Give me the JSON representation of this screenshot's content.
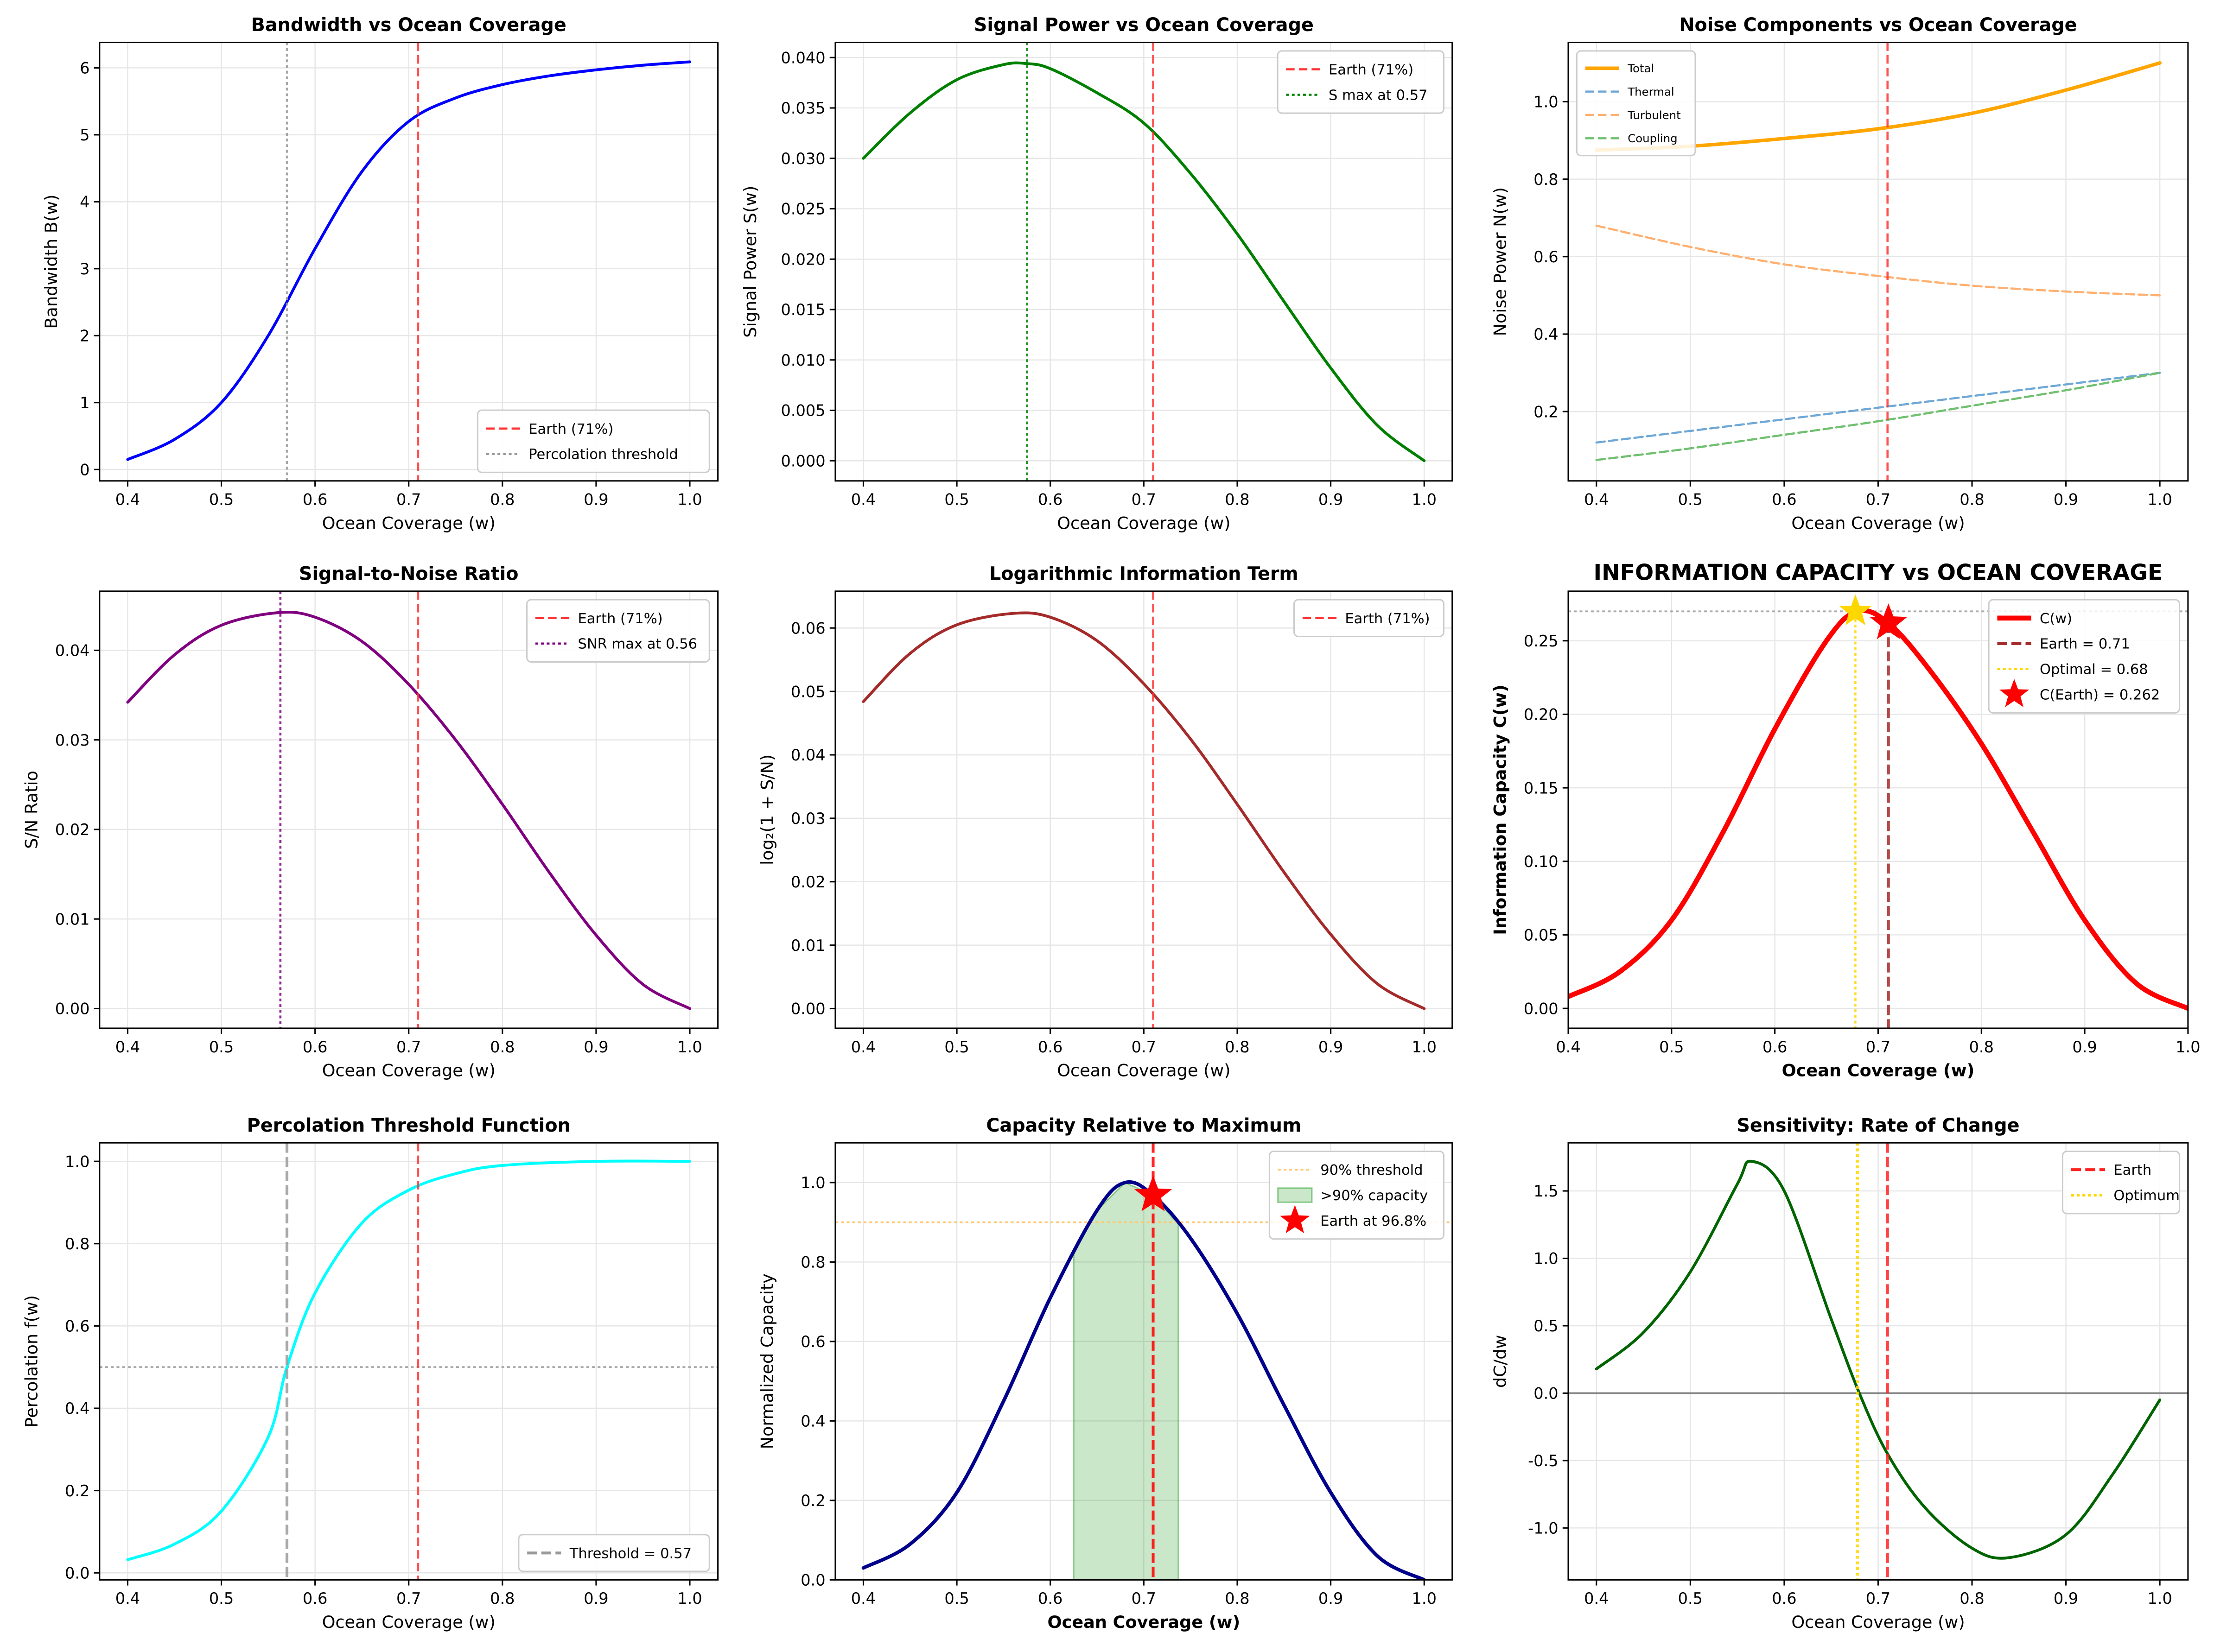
{
  "chart_data": [
    {
      "type": "line",
      "title": "Bandwidth vs Ocean Coverage",
      "xlabel": "Ocean Coverage (w)",
      "ylabel": "Bandwidth B(w)",
      "xlim": [
        0.37,
        1.03
      ],
      "ylim": [
        -0.17,
        6.38
      ],
      "grid": true,
      "xticks": [
        0.4,
        0.5,
        0.6,
        0.7,
        0.8,
        0.9,
        1.0
      ],
      "yticks": [
        0,
        1,
        2,
        3,
        4,
        5,
        6
      ],
      "legend": "lower-right",
      "series": [
        {
          "x": [
            0.4,
            0.45,
            0.5,
            0.55,
            0.6,
            0.65,
            0.7,
            0.75,
            0.8,
            0.85,
            0.9,
            0.95,
            1.0
          ],
          "y": [
            0.15,
            0.45,
            1.0,
            2.0,
            3.3,
            4.45,
            5.2,
            5.55,
            5.75,
            5.88,
            5.97,
            6.04,
            6.09
          ],
          "color": "#0000ff",
          "width": 2
        }
      ],
      "vlines": [
        {
          "x": 0.71,
          "name": "Earth (71%)",
          "color": "#ff3333",
          "dash": "6,3"
        },
        {
          "x": 0.57,
          "name": "Percolation threshold",
          "color": "#999999",
          "dash": "2,2"
        }
      ]
    },
    {
      "type": "line",
      "title": "Signal Power vs Ocean Coverage",
      "xlabel": "Ocean Coverage (w)",
      "ylabel": "Signal Power S(w)",
      "xlim": [
        0.37,
        1.03
      ],
      "ylim": [
        -0.002,
        0.0415
      ],
      "grid": true,
      "xticks": [
        0.4,
        0.5,
        0.6,
        0.7,
        0.8,
        0.9,
        1.0
      ],
      "yticks": [
        0,
        0.005,
        0.01,
        0.015,
        0.02,
        0.025,
        0.03,
        0.035,
        0.04
      ],
      "ytick_decimals": 3,
      "legend": "upper-right",
      "series": [
        {
          "x": [
            0.4,
            0.45,
            0.5,
            0.55,
            0.575,
            0.6,
            0.65,
            0.7,
            0.75,
            0.8,
            0.85,
            0.9,
            0.95,
            1.0
          ],
          "y": [
            0.03,
            0.0345,
            0.0378,
            0.0393,
            0.0394,
            0.0389,
            0.0365,
            0.0335,
            0.0285,
            0.0225,
            0.0158,
            0.0092,
            0.0035,
            0.0
          ],
          "color": "#008000",
          "width": 2
        }
      ],
      "vlines": [
        {
          "x": 0.71,
          "name": "Earth (71%)",
          "color": "#ff3333",
          "dash": "6,3"
        },
        {
          "x": 0.575,
          "name": "S max at 0.57",
          "color": "#008000",
          "dash": "2,2"
        }
      ]
    },
    {
      "type": "line",
      "title": "Noise Components vs Ocean Coverage",
      "xlabel": "Ocean Coverage (w)",
      "ylabel": "Noise Power N(w)",
      "xlim": [
        0.37,
        1.03
      ],
      "ylim": [
        0.021,
        1.153
      ],
      "grid": true,
      "xticks": [
        0.4,
        0.5,
        0.6,
        0.7,
        0.8,
        0.9,
        1.0
      ],
      "yticks": [
        0.2,
        0.4,
        0.6,
        0.8,
        1.0
      ],
      "ytick_decimals": 1,
      "legend": "upper-left",
      "series": [
        {
          "name": "Total",
          "x": [
            0.4,
            0.5,
            0.6,
            0.7,
            0.8,
            0.9,
            1.0
          ],
          "y": [
            0.875,
            0.885,
            0.905,
            0.93,
            0.97,
            1.03,
            1.1
          ],
          "color": "#ffa500",
          "width": 2.5
        },
        {
          "name": "Thermal",
          "x": [
            0.4,
            0.5,
            0.6,
            0.7,
            0.8,
            0.9,
            1.0
          ],
          "y": [
            0.12,
            0.15,
            0.18,
            0.21,
            0.24,
            0.27,
            0.3
          ],
          "color": "#6fa8d6",
          "width": 1.5,
          "dash": "6,3"
        },
        {
          "name": "Turbulent",
          "x": [
            0.4,
            0.5,
            0.6,
            0.7,
            0.8,
            0.9,
            1.0
          ],
          "y": [
            0.68,
            0.625,
            0.58,
            0.55,
            0.525,
            0.51,
            0.5
          ],
          "color": "#ffb070",
          "width": 1.5,
          "dash": "6,3"
        },
        {
          "name": "Coupling",
          "x": [
            0.4,
            0.5,
            0.6,
            0.7,
            0.8,
            0.9,
            1.0
          ],
          "y": [
            0.075,
            0.105,
            0.14,
            0.175,
            0.215,
            0.255,
            0.3
          ],
          "color": "#70c070",
          "width": 1.5,
          "dash": "6,3"
        }
      ],
      "vlines": [
        {
          "x": 0.71,
          "color": "#ff3333",
          "dash": "6,3"
        }
      ]
    },
    {
      "type": "line",
      "title": "Signal-to-Noise Ratio",
      "xlabel": "Ocean Coverage (w)",
      "ylabel": "S/N Ratio",
      "xlim": [
        0.37,
        1.03
      ],
      "ylim": [
        -0.0022,
        0.0466
      ],
      "grid": true,
      "xticks": [
        0.4,
        0.5,
        0.6,
        0.7,
        0.8,
        0.9,
        1.0
      ],
      "yticks": [
        0,
        0.01,
        0.02,
        0.03,
        0.04
      ],
      "ytick_decimals": 2,
      "legend": "upper-right",
      "series": [
        {
          "x": [
            0.4,
            0.45,
            0.5,
            0.56,
            0.6,
            0.65,
            0.7,
            0.75,
            0.8,
            0.85,
            0.9,
            0.95,
            1.0
          ],
          "y": [
            0.0342,
            0.0395,
            0.0428,
            0.0442,
            0.0437,
            0.041,
            0.0362,
            0.03,
            0.0228,
            0.0152,
            0.0082,
            0.0027,
            0.0
          ],
          "color": "#800080",
          "width": 2
        }
      ],
      "vlines": [
        {
          "x": 0.71,
          "name": "Earth (71%)",
          "color": "#ff3333",
          "dash": "6,3"
        },
        {
          "x": 0.563,
          "name": "SNR max at 0.56",
          "color": "#800080",
          "dash": "2,2"
        }
      ]
    },
    {
      "type": "line",
      "title": "Logarithmic Information Term",
      "xlabel": "Ocean Coverage (w)",
      "ylabel": "log₂(1 + S/N)",
      "xlim": [
        0.37,
        1.03
      ],
      "ylim": [
        -0.0031,
        0.0658
      ],
      "grid": true,
      "xticks": [
        0.4,
        0.5,
        0.6,
        0.7,
        0.8,
        0.9,
        1.0
      ],
      "yticks": [
        0,
        0.01,
        0.02,
        0.03,
        0.04,
        0.05,
        0.06
      ],
      "ytick_decimals": 2,
      "legend": "upper-right",
      "series": [
        {
          "x": [
            0.4,
            0.45,
            0.5,
            0.56,
            0.6,
            0.65,
            0.7,
            0.75,
            0.8,
            0.85,
            0.9,
            0.95,
            1.0
          ],
          "y": [
            0.0484,
            0.056,
            0.0605,
            0.0623,
            0.0617,
            0.058,
            0.0512,
            0.0425,
            0.0322,
            0.0215,
            0.0117,
            0.0039,
            0.0
          ],
          "color": "#a52a2a",
          "width": 2
        }
      ],
      "vlines": [
        {
          "x": 0.71,
          "name": "Earth (71%)",
          "color": "#ff3333",
          "dash": "6,3"
        }
      ]
    },
    {
      "type": "line",
      "title": "INFORMATION CAPACITY vs OCEAN COVERAGE",
      "xlabel": "Ocean Coverage (w)",
      "ylabel": "Information Capacity C(w)",
      "bold_labels": true,
      "xlim": [
        0.4,
        1.0
      ],
      "ylim": [
        -0.0135,
        0.2837
      ],
      "grid": true,
      "xticks": [
        0.4,
        0.5,
        0.6,
        0.7,
        0.8,
        0.9,
        1.0
      ],
      "yticks": [
        0,
        0.05,
        0.1,
        0.15,
        0.2,
        0.25
      ],
      "ytick_decimals": 2,
      "legend": "upper-right",
      "series": [
        {
          "name": "C(w)",
          "x": [
            0.4,
            0.45,
            0.5,
            0.55,
            0.6,
            0.65,
            0.68,
            0.71,
            0.75,
            0.8,
            0.85,
            0.9,
            0.95,
            1.0
          ],
          "y": [
            0.008,
            0.025,
            0.06,
            0.12,
            0.19,
            0.25,
            0.27,
            0.262,
            0.23,
            0.18,
            0.12,
            0.06,
            0.017,
            0.0
          ],
          "color": "#ff0000",
          "width": 3.5
        }
      ],
      "vlines": [
        {
          "x": 0.71,
          "name": "Earth = 0.71",
          "color": "#a52a2a",
          "dash": "7,3",
          "width": 2,
          "to_curve": true
        },
        {
          "x": 0.678,
          "name": "Optimal = 0.68",
          "color": "#ffd700",
          "dash": "2,2",
          "width": 1.5,
          "to_curve": true
        }
      ],
      "hlines": [
        {
          "y": 0.27,
          "color": "#aaaaaa",
          "dash": "2,2"
        }
      ],
      "markers": [
        {
          "x": 0.678,
          "y": 0.27,
          "color": "#ffd700",
          "size": 12
        },
        {
          "x": 0.71,
          "y": 0.262,
          "name": "C(Earth) = 0.262",
          "color": "#ff0000",
          "size": 14
        }
      ]
    },
    {
      "type": "line",
      "title": "Percolation Threshold Function",
      "xlabel": "Ocean Coverage (w)",
      "ylabel": "Percolation f(w)",
      "xlim": [
        0.37,
        1.03
      ],
      "ylim": [
        -0.017,
        1.045
      ],
      "grid": true,
      "xticks": [
        0.4,
        0.5,
        0.6,
        0.7,
        0.8,
        0.9,
        1.0
      ],
      "yticks": [
        0,
        0.2,
        0.4,
        0.6,
        0.8,
        1.0
      ],
      "ytick_decimals": 1,
      "legend": "lower-right",
      "series": [
        {
          "x": [
            0.4,
            0.45,
            0.5,
            0.55,
            0.57,
            0.6,
            0.65,
            0.7,
            0.75,
            0.8,
            0.9,
            1.0
          ],
          "y": [
            0.032,
            0.07,
            0.15,
            0.33,
            0.5,
            0.68,
            0.85,
            0.93,
            0.97,
            0.99,
            1.0,
            1.0
          ],
          "color": "#00ffff",
          "width": 2
        }
      ],
      "vlines": [
        {
          "x": 0.71,
          "color": "#ff3333",
          "dash": "6,3"
        },
        {
          "x": 0.57,
          "name": "Threshold = 0.57",
          "color": "#999999",
          "dash": "7,3",
          "width": 2
        }
      ],
      "hlines": [
        {
          "y": 0.5,
          "color": "#aaaaaa",
          "dash": "2,2"
        }
      ]
    },
    {
      "type": "line",
      "title": "Capacity Relative to Maximum",
      "xlabel": "Ocean Coverage (w)",
      "ylabel": "Normalized Capacity",
      "bold_xlabel": true,
      "xlim": [
        0.37,
        1.03
      ],
      "ylim": [
        0,
        1.1
      ],
      "grid": true,
      "xticks": [
        0.4,
        0.5,
        0.6,
        0.7,
        0.8,
        0.9,
        1.0
      ],
      "yticks": [
        0,
        0.2,
        0.4,
        0.6,
        0.8,
        1.0
      ],
      "ytick_decimals": 1,
      "legend": "upper-right",
      "series": [
        {
          "x": [
            0.4,
            0.45,
            0.5,
            0.55,
            0.6,
            0.65,
            0.68,
            0.71,
            0.75,
            0.8,
            0.85,
            0.9,
            0.95,
            1.0
          ],
          "y": [
            0.03,
            0.09,
            0.22,
            0.45,
            0.71,
            0.93,
            1.0,
            0.968,
            0.86,
            0.67,
            0.44,
            0.22,
            0.06,
            0.0
          ],
          "color": "#00008b",
          "width": 2.5
        }
      ],
      "hlines": [
        {
          "y": 0.9,
          "name": "90% threshold",
          "color": "#ffc870",
          "dash": "2,2"
        }
      ],
      "fill": {
        "x0": 0.625,
        "x1": 0.737,
        "name": ">90% capacity",
        "color": "#2ca02c"
      },
      "vlines": [
        {
          "x": 0.71,
          "color": "#ff0000",
          "dash": "7,3",
          "width": 2
        }
      ],
      "markers": [
        {
          "x": 0.71,
          "y": 0.968,
          "name": "Earth at 96.8%",
          "color": "#ff0000",
          "size": 14
        }
      ]
    },
    {
      "type": "line",
      "title": "Sensitivity: Rate of Change",
      "xlabel": "Ocean Coverage (w)",
      "ylabel": "dC/dw",
      "xlim": [
        0.37,
        1.03
      ],
      "ylim": [
        -1.385,
        1.857
      ],
      "grid": true,
      "xticks": [
        0.4,
        0.5,
        0.6,
        0.7,
        0.8,
        0.9,
        1.0
      ],
      "yticks": [
        -1.0,
        -0.5,
        0.0,
        0.5,
        1.0,
        1.5
      ],
      "ytick_decimals": 1,
      "legend": "upper-right",
      "series": [
        {
          "x": [
            0.4,
            0.45,
            0.5,
            0.55,
            0.565,
            0.6,
            0.65,
            0.68,
            0.71,
            0.75,
            0.8,
            0.84,
            0.9,
            0.95,
            1.0
          ],
          "y": [
            0.18,
            0.45,
            0.9,
            1.55,
            1.72,
            1.5,
            0.55,
            0.0,
            -0.45,
            -0.85,
            -1.15,
            -1.22,
            -1.05,
            -0.6,
            -0.05
          ],
          "color": "#006400",
          "width": 2
        }
      ],
      "hlines": [
        {
          "y": 0,
          "color": "#888888",
          "dash": ""
        }
      ],
      "vlines": [
        {
          "x": 0.71,
          "name": "Earth",
          "color": "#ff2222",
          "dash": "7,3",
          "width": 2
        },
        {
          "x": 0.678,
          "name": "Optimum",
          "color": "#ffd700",
          "dash": "2,2",
          "width": 2
        }
      ]
    }
  ]
}
